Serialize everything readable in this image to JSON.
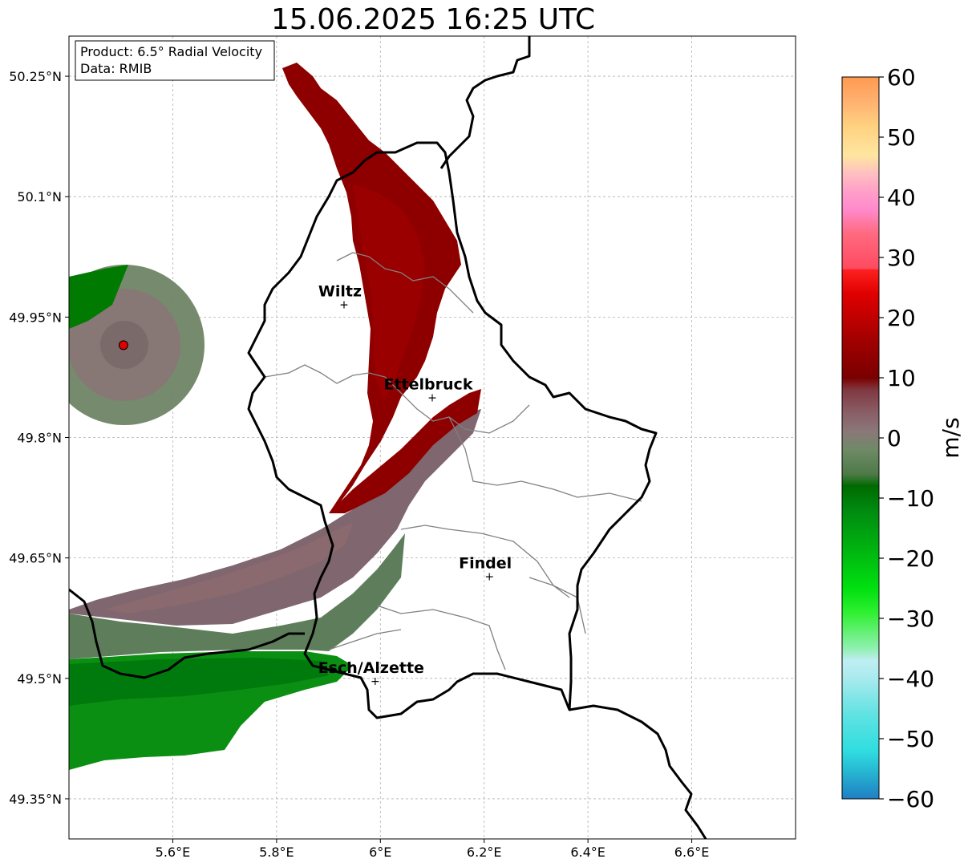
{
  "title": "15.06.2025 16:25 UTC",
  "info_box": {
    "product_line": "Product: 6.5° Radial Velocity",
    "data_line": "Data: RMIB"
  },
  "map": {
    "lon_range": [
      5.4,
      6.8
    ],
    "lat_range": [
      49.3,
      50.3
    ],
    "x_ticks": [
      {
        "value": 5.6,
        "label": "5.6°E"
      },
      {
        "value": 5.8,
        "label": "5.8°E"
      },
      {
        "value": 6.0,
        "label": "6°E"
      },
      {
        "value": 6.2,
        "label": "6.2°E"
      },
      {
        "value": 6.4,
        "label": "6.4°E"
      },
      {
        "value": 6.6,
        "label": "6.6°E"
      }
    ],
    "y_ticks": [
      {
        "value": 50.25,
        "label": "50.25°N"
      },
      {
        "value": 50.1,
        "label": "50.1°N"
      },
      {
        "value": 49.95,
        "label": "49.95°N"
      },
      {
        "value": 49.8,
        "label": "49.8°N"
      },
      {
        "value": 49.65,
        "label": "49.65°N"
      },
      {
        "value": 49.5,
        "label": "49.5°N"
      },
      {
        "value": 49.35,
        "label": "49.35°N"
      }
    ],
    "grid": true,
    "cities": [
      {
        "name": "Wiltz",
        "lon": 5.93,
        "lat": 49.966
      },
      {
        "name": "Ettelbruck",
        "lon": 6.1,
        "lat": 49.85
      },
      {
        "name": "Findel",
        "lon": 6.21,
        "lat": 49.627
      },
      {
        "name": "Esch/Alzette",
        "lon": 5.99,
        "lat": 49.497
      }
    ],
    "radar_site": {
      "lon": 5.505,
      "lat": 49.915,
      "color": "#e00000"
    }
  },
  "colorbar": {
    "label": "m/s",
    "range": [
      -60,
      60
    ],
    "ticks": [
      {
        "value": 60,
        "label": "60"
      },
      {
        "value": 50,
        "label": "50"
      },
      {
        "value": 40,
        "label": "40"
      },
      {
        "value": 30,
        "label": "30"
      },
      {
        "value": 20,
        "label": "20"
      },
      {
        "value": 10,
        "label": "10"
      },
      {
        "value": 0,
        "label": "0"
      },
      {
        "value": -10,
        "label": "−10"
      },
      {
        "value": -20,
        "label": "−20"
      },
      {
        "value": -30,
        "label": "−30"
      },
      {
        "value": -40,
        "label": "−40"
      },
      {
        "value": -50,
        "label": "−50"
      },
      {
        "value": -60,
        "label": "−60"
      }
    ],
    "stops": [
      {
        "v": -60,
        "c": "#1f7fc4"
      },
      {
        "v": -56,
        "c": "#25b0d0"
      },
      {
        "v": -52,
        "c": "#30dde0"
      },
      {
        "v": -46,
        "c": "#60e2e2"
      },
      {
        "v": -40,
        "c": "#a8eaee"
      },
      {
        "v": -37,
        "c": "#c0eef2"
      },
      {
        "v": -35,
        "c": "#90f0b0"
      },
      {
        "v": -32,
        "c": "#60f070"
      },
      {
        "v": -29,
        "c": "#2ef030"
      },
      {
        "v": -25,
        "c": "#00e010"
      },
      {
        "v": -18,
        "c": "#00b010"
      },
      {
        "v": -12,
        "c": "#008a10"
      },
      {
        "v": -8,
        "c": "#006a00"
      },
      {
        "v": -6,
        "c": "#4e7a48"
      },
      {
        "v": -2,
        "c": "#6e8a66"
      },
      {
        "v": 1,
        "c": "#8a7878"
      },
      {
        "v": 4,
        "c": "#8a6068"
      },
      {
        "v": 8,
        "c": "#803840"
      },
      {
        "v": 10,
        "c": "#7a0000"
      },
      {
        "v": 16,
        "c": "#a00000"
      },
      {
        "v": 20,
        "c": "#c00000"
      },
      {
        "v": 24,
        "c": "#e00000"
      },
      {
        "v": 28,
        "c": "#ff2020"
      },
      {
        "v": 28.1,
        "c": "#ff4a60"
      },
      {
        "v": 34,
        "c": "#ff6a80"
      },
      {
        "v": 38,
        "c": "#ff8acc"
      },
      {
        "v": 41,
        "c": "#ffa0c8"
      },
      {
        "v": 44,
        "c": "#ffc0c0"
      },
      {
        "v": 47,
        "c": "#ffe6a0"
      },
      {
        "v": 52,
        "c": "#ffd080"
      },
      {
        "v": 56,
        "c": "#ffb070"
      },
      {
        "v": 60,
        "c": "#ff9a50"
      }
    ]
  },
  "colors": {
    "green_dark": "#0a8a0a",
    "green_mid": "#5a7e58",
    "neutral": "#7d6a70",
    "red_dark": "#8c0000",
    "border": "#000000",
    "canton": "#808080"
  }
}
